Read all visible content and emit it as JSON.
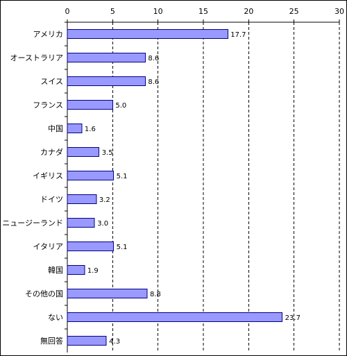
{
  "chart_data": {
    "type": "bar",
    "orientation": "horizontal",
    "title": "",
    "xlabel": "",
    "ylabel": "",
    "xlim": [
      0,
      30
    ],
    "ticks": [
      "0",
      "5",
      "10",
      "15",
      "20",
      "25",
      "30"
    ],
    "tick_values": [
      0,
      5,
      10,
      15,
      20,
      25,
      30
    ],
    "grid": "vertical dashed",
    "categories": [
      "アメリカ",
      "オーストラリア",
      "スイス",
      "フランス",
      "中国",
      "カナダ",
      "イギリス",
      "ドイツ",
      "ニュージーランド",
      "イタリア",
      "韓国",
      "その他の国",
      "ない",
      "無回答"
    ],
    "values": [
      17.7,
      8.6,
      8.6,
      5.0,
      1.6,
      3.5,
      5.1,
      3.2,
      3.0,
      5.1,
      1.9,
      8.8,
      23.7,
      4.3
    ],
    "value_labels": [
      "17.7",
      "8.6",
      "8.6",
      "5.0",
      "1.6",
      "3.5",
      "5.1",
      "3.2",
      "3.0",
      "5.1",
      "1.9",
      "8.8",
      "23.7",
      "4.3"
    ],
    "bar_color": "#9999ff",
    "bar_edge_color": "#000080",
    "grid_color": "#000000"
  }
}
